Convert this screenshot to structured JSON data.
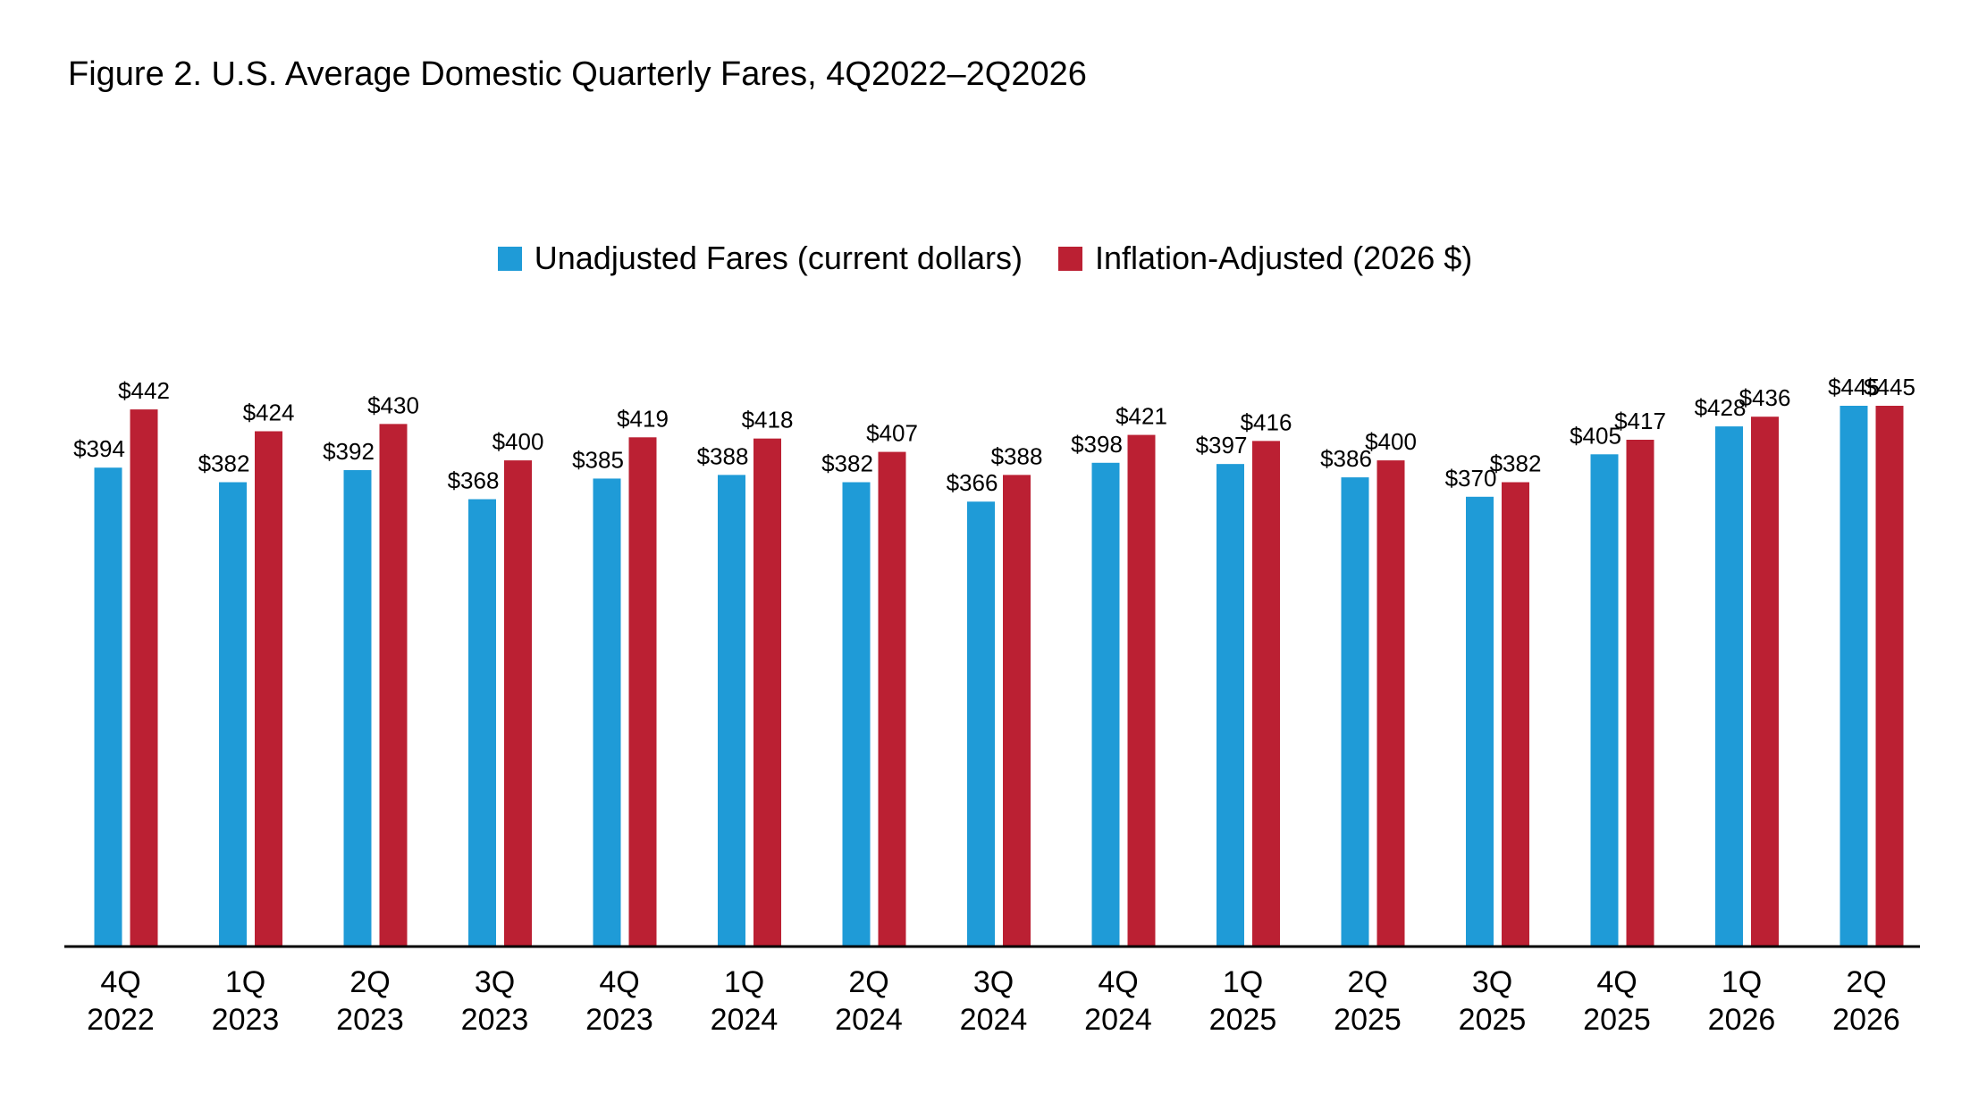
{
  "title": "Figure 2. U.S. Average Domestic Quarterly Fares, 4Q2022–2Q2026",
  "colors": {
    "unadjusted": "#1f9bd7",
    "adjusted": "#bb2033",
    "axis": "#000000"
  },
  "chart_data": {
    "type": "bar",
    "title": "Figure 2. U.S. Average Domestic Quarterly Fares, 4Q2022–2Q2026",
    "xlabel": "",
    "ylabel": "",
    "ylim": [
      0,
      445
    ],
    "grid": false,
    "legend_position": "top-center",
    "categories": [
      [
        "4Q",
        "2022"
      ],
      [
        "1Q",
        "2023"
      ],
      [
        "2Q",
        "2023"
      ],
      [
        "3Q",
        "2023"
      ],
      [
        "4Q",
        "2023"
      ],
      [
        "1Q",
        "2024"
      ],
      [
        "2Q",
        "2024"
      ],
      [
        "3Q",
        "2024"
      ],
      [
        "4Q",
        "2024"
      ],
      [
        "1Q",
        "2025"
      ],
      [
        "2Q",
        "2025"
      ],
      [
        "3Q",
        "2025"
      ],
      [
        "4Q",
        "2025"
      ],
      [
        "1Q",
        "2026"
      ],
      [
        "2Q",
        "2026"
      ]
    ],
    "series": [
      {
        "name": "Unadjusted Fares (current dollars)",
        "color": "#1f9bd7",
        "values": [
          394,
          382,
          392,
          368,
          385,
          388,
          382,
          366,
          398,
          397,
          386,
          370,
          405,
          428,
          445
        ],
        "labels": [
          "$394",
          "$382",
          "$392",
          "$368",
          "$385",
          "$388",
          "$382",
          "$366",
          "$398",
          "$397",
          "$386",
          "$370",
          "$405",
          "$428",
          "$445"
        ]
      },
      {
        "name": "Inflation-Adjusted (2026 $)",
        "color": "#bb2033",
        "values": [
          442,
          424,
          430,
          400,
          419,
          418,
          407,
          388,
          421,
          416,
          400,
          382,
          417,
          436,
          445
        ],
        "labels": [
          "$442",
          "$424",
          "$430",
          "$400",
          "$419",
          "$418",
          "$407",
          "$388",
          "$421",
          "$416",
          "$400",
          "$382",
          "$417",
          "$436",
          "$445"
        ]
      }
    ]
  }
}
